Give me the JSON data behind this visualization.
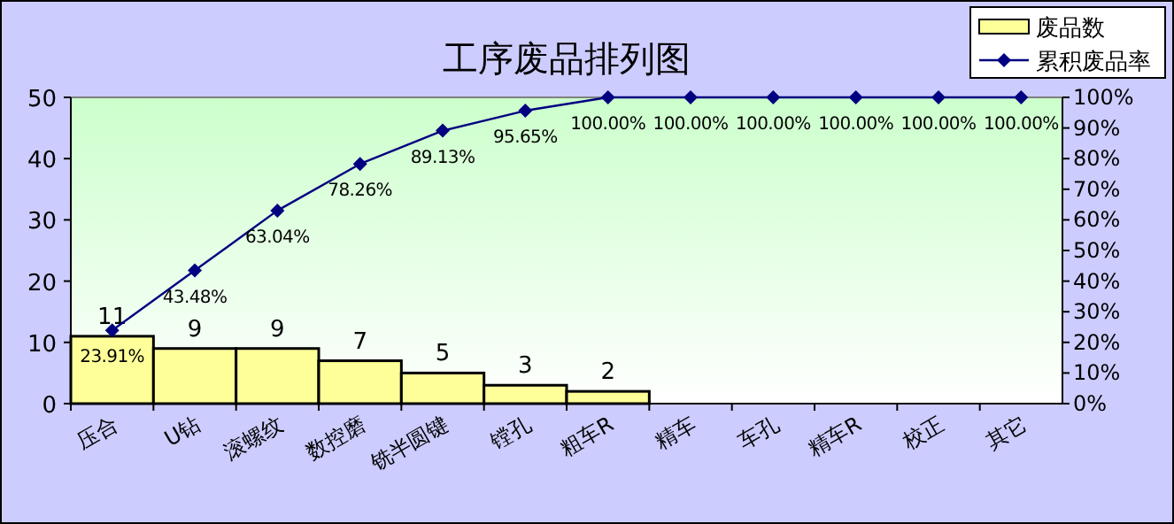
{
  "chart_data": {
    "type": "bar",
    "title": "工序废品排列图",
    "categories": [
      "压合",
      "U钻",
      "滚螺纹",
      "数控磨",
      "铣半圆键",
      "镗孔",
      "粗车R",
      "精车",
      "车孔",
      "精车R",
      "校正",
      "其它"
    ],
    "series": [
      {
        "name": "废品数",
        "color": "#ffff99",
        "values": [
          11,
          9,
          9,
          7,
          5,
          3,
          2,
          0,
          0,
          0,
          0,
          0
        ],
        "value_labels": [
          "11",
          "9",
          "9",
          "7",
          "5",
          "3",
          "2",
          null,
          null,
          null,
          null,
          null
        ]
      },
      {
        "name": "累积废品率",
        "type": "line",
        "axis": "y2",
        "color": "#000080",
        "values": [
          23.91,
          43.48,
          63.04,
          78.26,
          89.13,
          95.65,
          100,
          100,
          100,
          100,
          100,
          100
        ],
        "value_labels": [
          "23.91%",
          "43.48%",
          "63.04%",
          "78.26%",
          "89.13%",
          "95.65%",
          "100.00%",
          "100.00%",
          "100.00%",
          "100.00%",
          "100.00%",
          "100.00%"
        ]
      }
    ],
    "ylim": [
      0,
      50
    ],
    "yticks": [
      0,
      10,
      20,
      30,
      40,
      50
    ],
    "y2lim": [
      0,
      100
    ],
    "y2ticks": [
      {
        "value": 0,
        "label": "0%"
      },
      {
        "value": 10,
        "label": "10%"
      },
      {
        "value": 20,
        "label": "20%"
      },
      {
        "value": 30,
        "label": "30%"
      },
      {
        "value": 40,
        "label": "40%"
      },
      {
        "value": 50,
        "label": "50%"
      },
      {
        "value": 60,
        "label": "60%"
      },
      {
        "value": 70,
        "label": "70%"
      },
      {
        "value": 80,
        "label": "80%"
      },
      {
        "value": 90,
        "label": "90%"
      },
      {
        "value": 100,
        "label": "100%"
      }
    ],
    "marker": "diamond",
    "legend": "top right",
    "grid": false
  }
}
